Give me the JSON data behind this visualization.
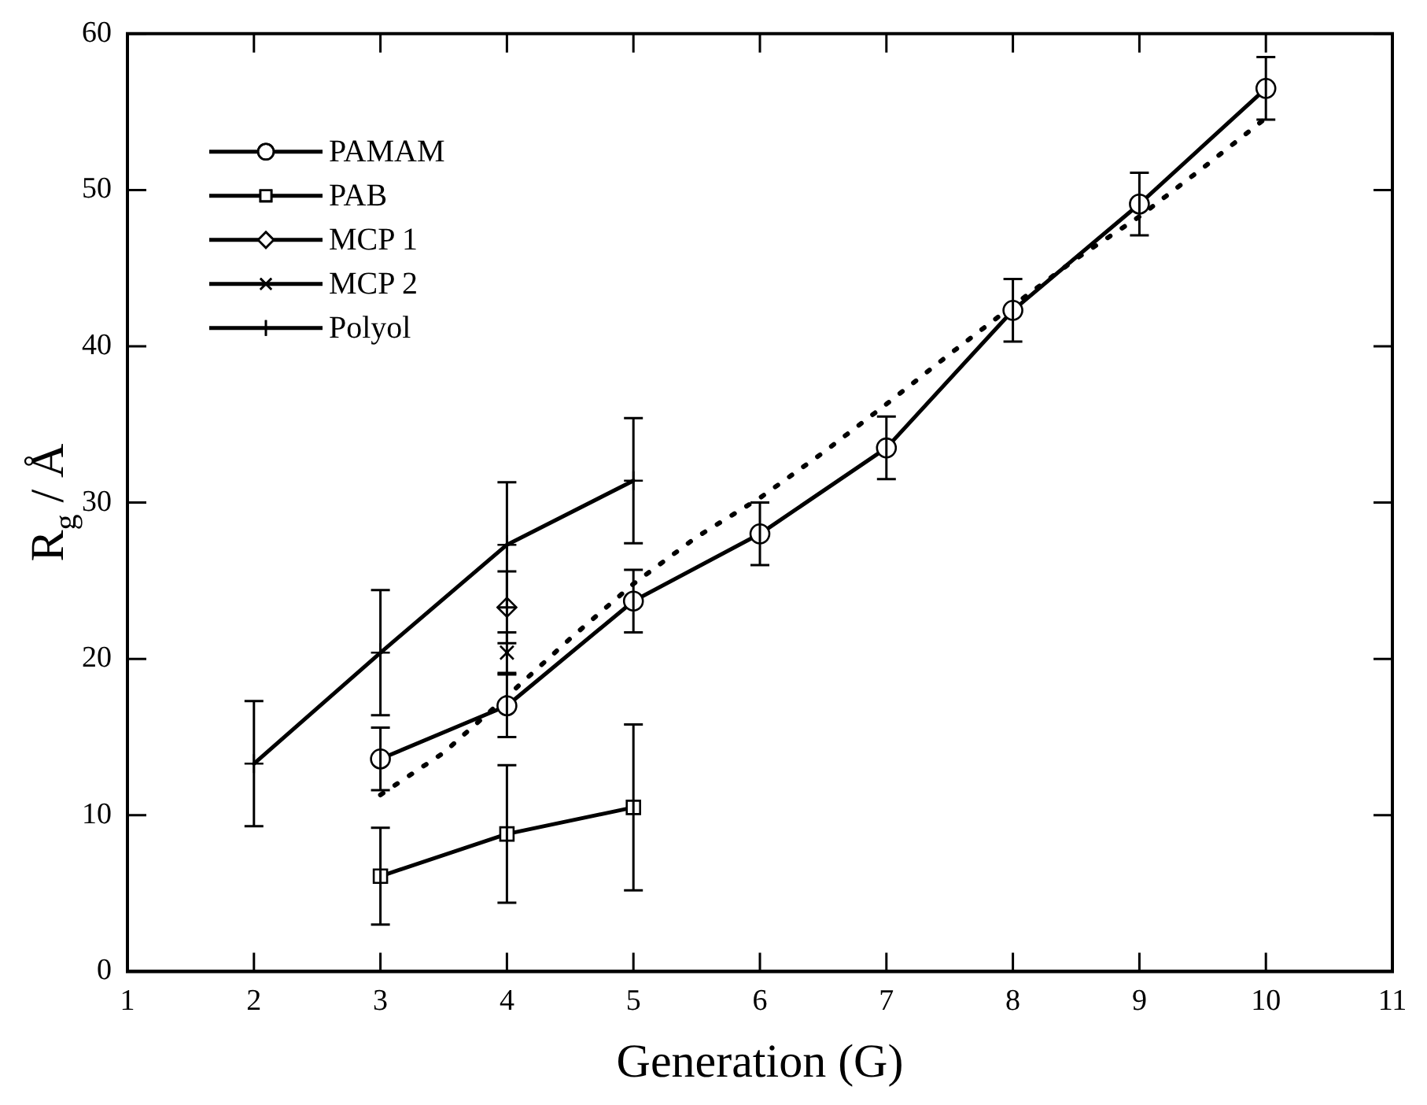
{
  "chart_data": {
    "type": "line",
    "xlabel": "Generation (G)",
    "ylabel": "R$_{g}$ / Å",
    "xlim": [
      1,
      11
    ],
    "xticks": [
      1,
      2,
      3,
      4,
      5,
      6,
      7,
      8,
      9,
      10,
      11
    ],
    "ylim": [
      0,
      60
    ],
    "yticks": [
      0,
      10,
      20,
      30,
      40,
      50,
      60
    ],
    "grid": false,
    "legend": "top left",
    "line_style": "solid",
    "series": [
      {
        "name": "PAMAM",
        "color": "#000000",
        "marker": "circle",
        "x": [
          3,
          4,
          5,
          6,
          7,
          8,
          9,
          10
        ],
        "values": [
          13.6,
          17.0,
          23.7,
          28.0,
          33.5,
          42.3,
          49.1,
          56.5
        ],
        "errors": [
          2,
          2,
          2,
          2,
          2,
          2,
          2,
          2
        ]
      },
      {
        "name": "PAB",
        "color": "#000000",
        "marker": "square",
        "x": [
          3,
          4,
          5
        ],
        "values": [
          6.1,
          8.8,
          10.5
        ],
        "errors": [
          3.1,
          4.4,
          5.3
        ]
      },
      {
        "name": "MCP 1",
        "color": "#000000",
        "marker": "diamond",
        "x": [
          4
        ],
        "values": [
          23.3
        ],
        "errors": [
          2.3
        ]
      },
      {
        "name": "MCP 2",
        "color": "#000000",
        "marker": "cross",
        "x": [
          4
        ],
        "values": [
          20.4
        ],
        "errors": [
          1.3
        ]
      },
      {
        "name": "Polyol",
        "color": "#000000",
        "marker": "plus",
        "x": [
          2,
          3,
          4,
          5
        ],
        "values": [
          13.3,
          20.4,
          27.3,
          31.4
        ],
        "errors": [
          4,
          4,
          4,
          4
        ]
      },
      {
        "type": "line",
        "color": "#000000",
        "marker": "none",
        "line_style": "dotted",
        "x": [
          3,
          3.5,
          4,
          4.5,
          5,
          5.5,
          6,
          6.5,
          7,
          7.5,
          8,
          8.5,
          9,
          9.5,
          10
        ],
        "values": [
          11.3,
          14.0,
          17.6,
          21.3,
          24.8,
          27.8,
          30.3,
          33.2,
          36.3,
          39.5,
          42.6,
          45.6,
          48.3,
          51.4,
          54.6
        ]
      }
    ]
  }
}
